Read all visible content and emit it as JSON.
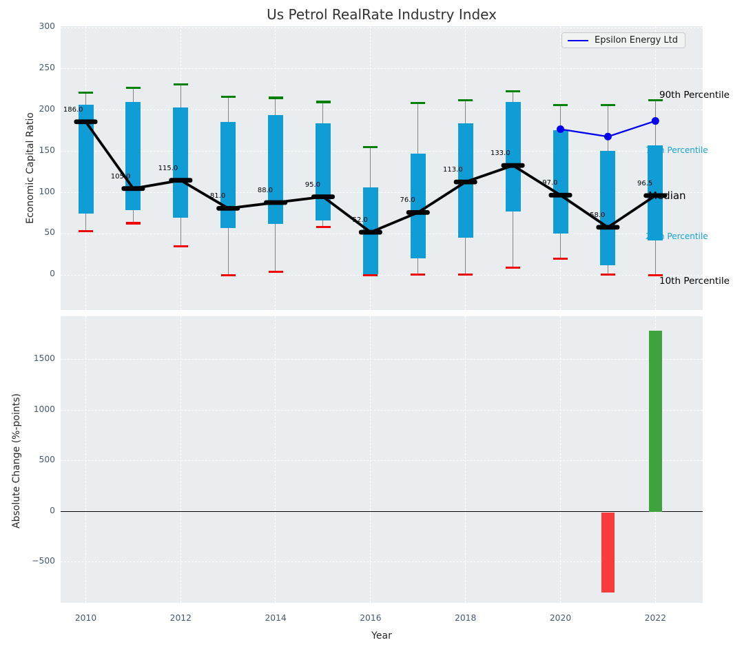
{
  "title": "Us Petrol RealRate Industry Index",
  "legend": {
    "label": "Epsilon Energy Ltd"
  },
  "colors": {
    "box": "#109cd4",
    "whisker": "#848484",
    "cap_high": "#008000",
    "cap_low": "#f20000",
    "median": "#000000",
    "epsilon_line": "#0000ee",
    "bar_positive": "#3fa23f",
    "bar_negative": "#fb3b3b",
    "secondary_label": "#1ba2d2",
    "primary_label": "#000000",
    "plot_bg": "#e9edef",
    "tick": "#46586e",
    "grid": "#ffffff"
  },
  "chart_data": [
    {
      "type": "boxplot+line",
      "title": "Us Petrol RealRate Industry Index",
      "ylabel": "Economic Capital Ratio",
      "years": [
        2010,
        2011,
        2012,
        2013,
        2014,
        2015,
        2016,
        2017,
        2018,
        2019,
        2020,
        2021,
        2022
      ],
      "yticks": [
        0,
        50,
        100,
        150,
        200,
        250,
        300
      ],
      "xticks": [
        2010,
        2012,
        2014,
        2016,
        2018,
        2020,
        2022
      ],
      "grid": true,
      "legend_position": "upper right",
      "series": [
        {
          "name": "90th Percentile",
          "role": "whisker_high",
          "values": [
            221,
            227,
            231,
            216,
            215,
            210,
            155,
            209,
            212,
            223,
            206,
            206,
            212
          ]
        },
        {
          "name": "75th Percentile",
          "role": "box_top",
          "values": [
            207,
            210,
            203,
            186,
            194,
            184,
            106,
            147,
            184,
            210,
            176,
            151,
            157
          ]
        },
        {
          "name": "Median",
          "role": "median",
          "values": [
            186,
            105,
            115,
            81,
            88,
            95,
            52,
            76,
            113,
            133,
            97,
            58,
            96.5
          ]
        },
        {
          "name": "25th Percentile",
          "role": "box_bottom",
          "values": [
            75,
            79,
            70,
            57,
            62,
            66,
            1,
            20,
            45,
            77,
            50,
            12,
            42
          ]
        },
        {
          "name": "10th Percentile",
          "role": "whisker_low",
          "values": [
            53,
            63,
            35,
            0,
            4,
            58,
            0,
            1,
            1,
            9,
            20,
            1,
            0
          ]
        }
      ],
      "median_labels": [
        "186.0",
        "105.0",
        "115.0",
        "81.0",
        "88.0",
        "95.0",
        "52.0",
        "76.0",
        "113.0",
        "133.0",
        "97.0",
        "58.0",
        "96.5"
      ],
      "line_series": {
        "name": "Epsilon Energy Ltd",
        "x": [
          2020,
          2021,
          2022
        ],
        "values": [
          177,
          168,
          187
        ]
      },
      "percentile_labels": [
        {
          "text": "90th Percentile",
          "style": "primary"
        },
        {
          "text": "75th Percentile",
          "style": "secondary"
        },
        {
          "text": "Median",
          "style": "median"
        },
        {
          "text": "25th Percentile",
          "style": "secondary"
        },
        {
          "text": "10th Percentile",
          "style": "primary"
        }
      ]
    },
    {
      "type": "bar",
      "ylabel": "Absolute Change (%-points)",
      "xlabel": "Year",
      "yticks": [
        1500,
        1000,
        500,
        0,
        -500
      ],
      "xticks": [
        2010,
        2012,
        2014,
        2016,
        2018,
        2020,
        2022
      ],
      "grid": true,
      "bars": [
        {
          "x": 2021,
          "value": -790,
          "direction": "negative"
        },
        {
          "x": 2022,
          "value": 1790,
          "direction": "positive"
        }
      ]
    }
  ]
}
